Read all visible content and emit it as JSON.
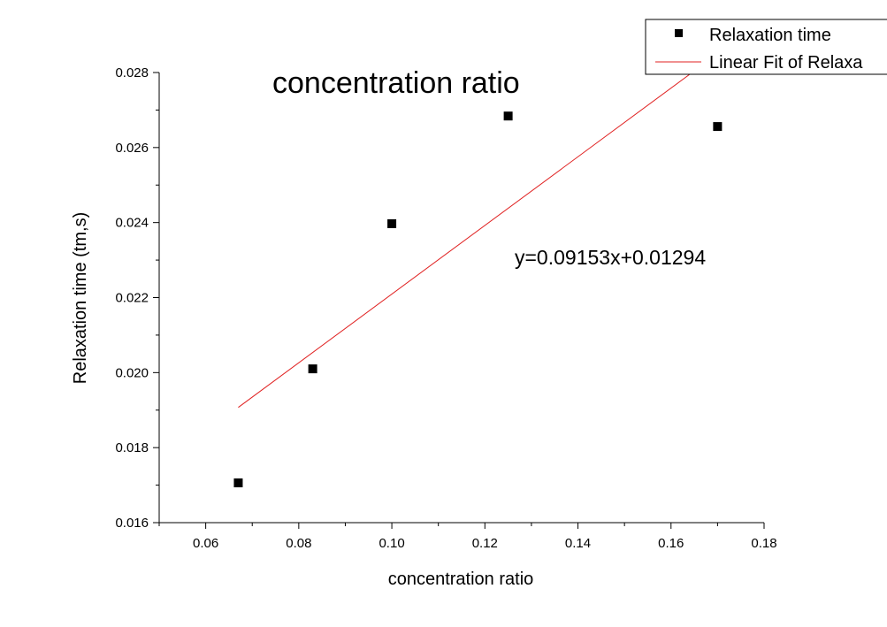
{
  "chart_data": {
    "type": "scatter",
    "title": "concentration ratio",
    "xlabel": "concentration ratio",
    "ylabel": "Relaxation time (tm,s)",
    "xlim": [
      0.05,
      0.18
    ],
    "ylim": [
      0.016,
      0.028
    ],
    "x_ticks": [
      0.06,
      0.08,
      0.1,
      0.12,
      0.14,
      0.16,
      0.18
    ],
    "x_tick_labels": [
      "0.06",
      "0.08",
      "0.10",
      "0.12",
      "0.14",
      "0.16",
      "0.18"
    ],
    "y_ticks": [
      0.016,
      0.018,
      0.02,
      0.022,
      0.024,
      0.026,
      0.028
    ],
    "y_tick_labels": [
      "0.016",
      "0.018",
      "0.020",
      "0.022",
      "0.024",
      "0.026",
      "0.028"
    ],
    "grid": false,
    "legend_position": "top-right",
    "series": [
      {
        "name": "Relaxation time",
        "kind": "scatter",
        "marker": "square",
        "color": "#000000",
        "x": [
          0.067,
          0.083,
          0.1,
          0.125,
          0.17
        ],
        "y": [
          0.01706,
          0.0201,
          0.02397,
          0.02684,
          0.02656
        ]
      },
      {
        "name": "Linear Fit of Relaxa",
        "kind": "line",
        "color": "#e02020",
        "slope": 0.09153,
        "intercept": 0.01294,
        "x_range": [
          0.067,
          0.17
        ]
      }
    ],
    "annotations": [
      {
        "text": "y=0.09153x+0.01294"
      }
    ]
  }
}
